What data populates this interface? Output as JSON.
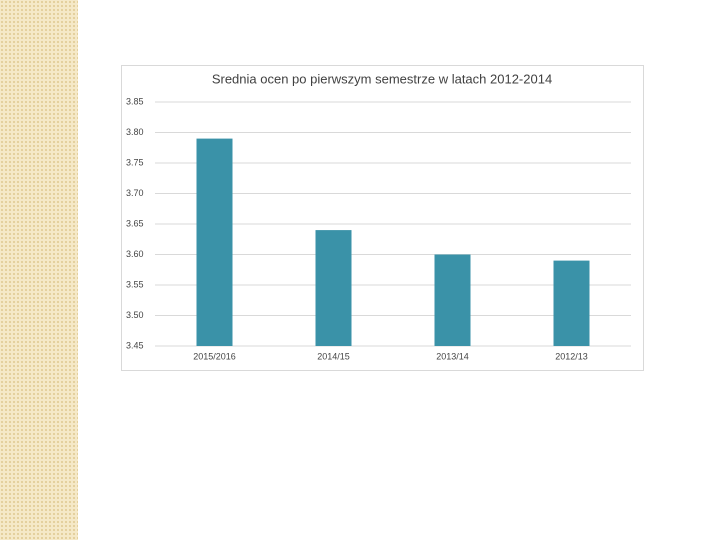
{
  "chart_data": {
    "type": "bar",
    "title": "Srednia ocen po pierwszym semestrze w latach 2012-2014",
    "categories": [
      "2015/2016",
      "2014/15",
      "2013/14",
      "2012/13"
    ],
    "values": [
      3.79,
      3.64,
      3.6,
      3.59
    ],
    "color": "#3a92a8",
    "ylim": [
      3.45,
      3.85
    ],
    "yticks": [
      3.45,
      {
        "value": 3.5,
        "label": "3.50"
      },
      3.55,
      {
        "value": 3.6,
        "label": "3.60"
      },
      3.65,
      {
        "value": 3.7,
        "label": "3.70"
      },
      3.75,
      {
        "value": 3.8,
        "label": "3.80"
      },
      3.85
    ],
    "grid": true
  }
}
